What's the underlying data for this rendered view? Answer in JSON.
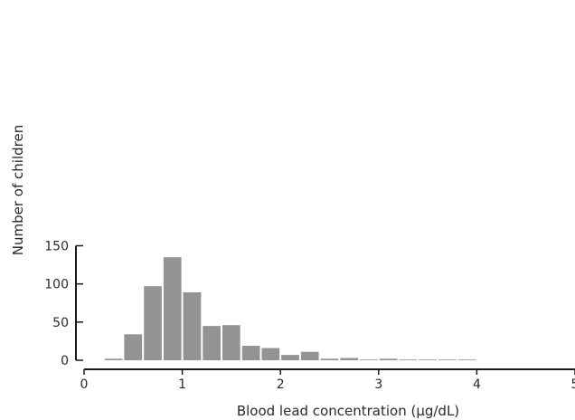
{
  "chart_data": {
    "type": "bar",
    "title": "",
    "xlabel": "Blood lead concentration (µg/dL)",
    "ylabel": "Number of children",
    "xlim": [
      0,
      5
    ],
    "ylim": [
      0,
      150
    ],
    "xticks": [
      "0",
      "1",
      "2",
      "3",
      "4",
      "5"
    ],
    "yticks": [
      "0",
      "50",
      "100",
      "150"
    ],
    "grid": false,
    "bar_color": "#939393",
    "bins": [
      {
        "start": 0.2,
        "end": 0.4,
        "value": 2
      },
      {
        "start": 0.4,
        "end": 0.6,
        "value": 34
      },
      {
        "start": 0.6,
        "end": 0.8,
        "value": 97
      },
      {
        "start": 0.8,
        "end": 1.0,
        "value": 135
      },
      {
        "start": 1.0,
        "end": 1.2,
        "value": 89
      },
      {
        "start": 1.2,
        "end": 1.4,
        "value": 45
      },
      {
        "start": 1.4,
        "end": 1.6,
        "value": 46
      },
      {
        "start": 1.6,
        "end": 1.8,
        "value": 19
      },
      {
        "start": 1.8,
        "end": 2.0,
        "value": 16
      },
      {
        "start": 2.0,
        "end": 2.2,
        "value": 7
      },
      {
        "start": 2.2,
        "end": 2.4,
        "value": 11
      },
      {
        "start": 2.4,
        "end": 2.6,
        "value": 2
      },
      {
        "start": 2.6,
        "end": 2.8,
        "value": 3
      },
      {
        "start": 2.8,
        "end": 3.0,
        "value": 1
      },
      {
        "start": 3.0,
        "end": 3.2,
        "value": 2
      },
      {
        "start": 3.2,
        "end": 3.4,
        "value": 1
      },
      {
        "start": 3.4,
        "end": 3.6,
        "value": 1
      },
      {
        "start": 3.6,
        "end": 3.8,
        "value": 1
      },
      {
        "start": 3.8,
        "end": 4.0,
        "value": 1
      }
    ]
  }
}
